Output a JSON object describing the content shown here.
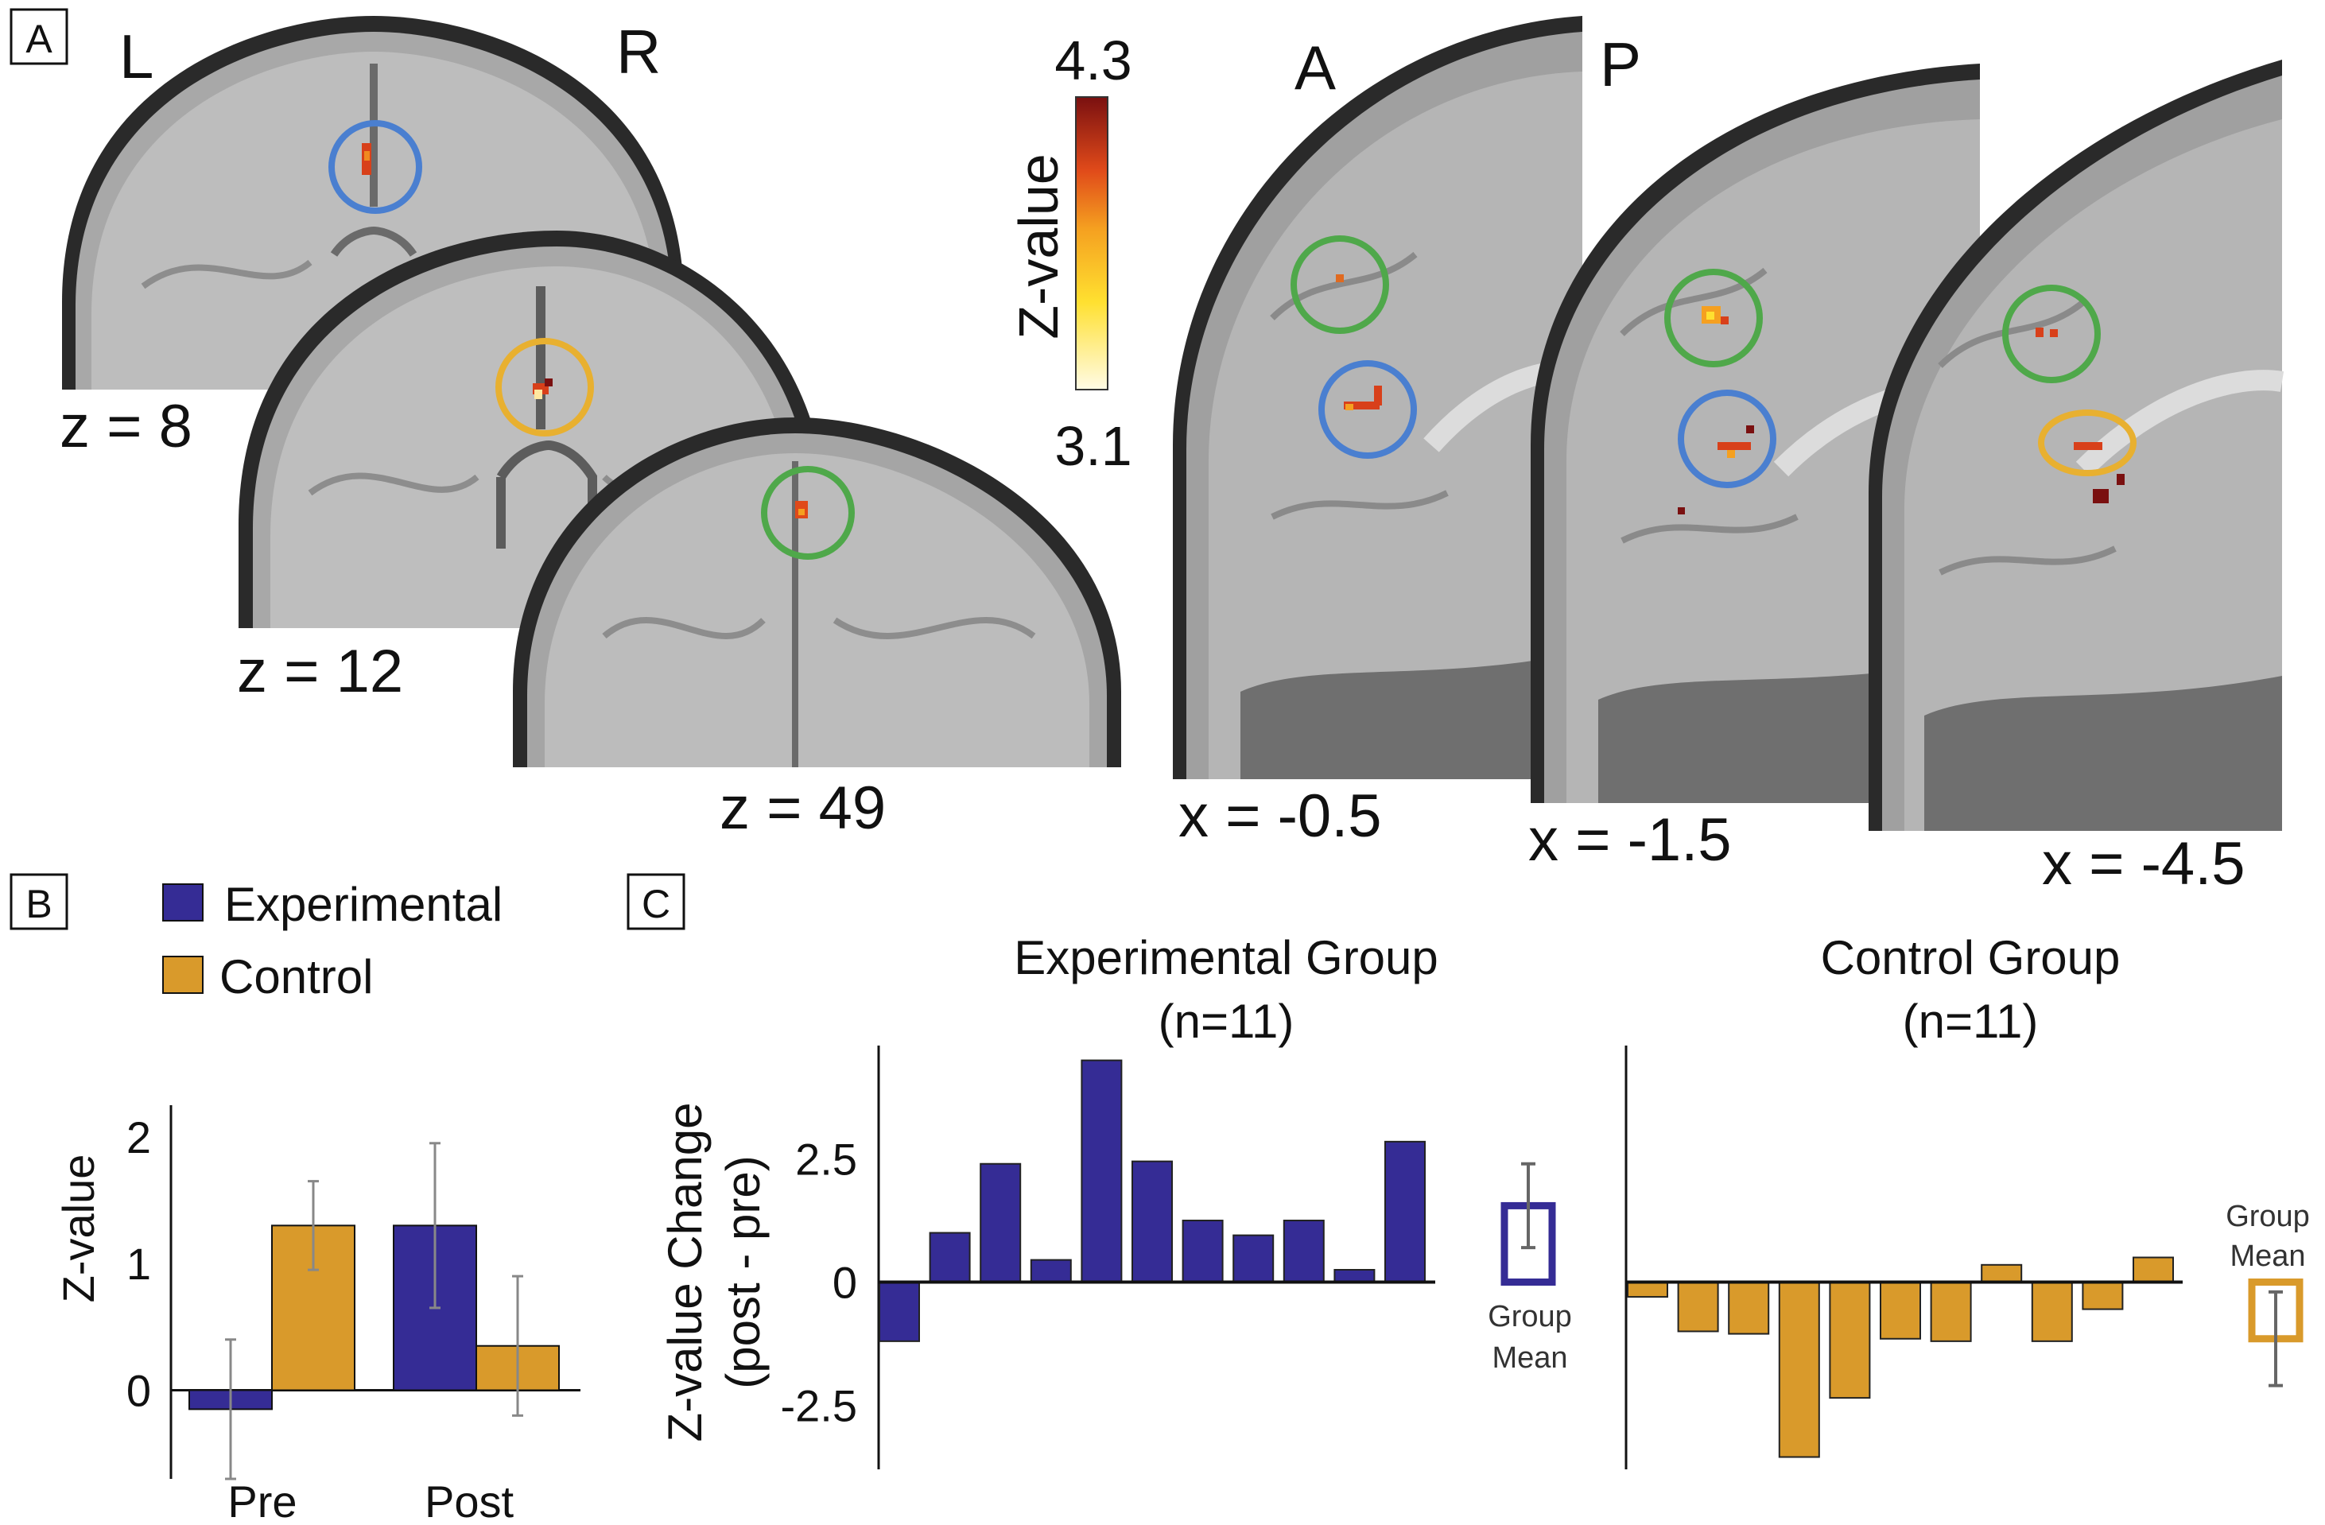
{
  "panels": {
    "A": "A",
    "B": "B",
    "C": "C"
  },
  "axial": {
    "left_label": "L",
    "right_label": "R",
    "slices": [
      "z = 8",
      "z = 12",
      "z = 49"
    ],
    "roi_colors": [
      "#4a7fd0",
      "#e8b030",
      "#4fa84a"
    ]
  },
  "sagittal": {
    "anterior_label": "A",
    "posterior_label": "P",
    "slices": [
      "x = -0.5",
      "x = -1.5",
      "x = -4.5"
    ]
  },
  "colorbar": {
    "label": "Z-value",
    "max_label": "4.3",
    "min_label": "3.1",
    "colors": [
      "#fffbe6",
      "#ffe030",
      "#f5a020",
      "#e04a1a",
      "#7a1010"
    ]
  },
  "colors": {
    "experimental": "#352c95",
    "control": "#d99a2b",
    "error_bar": "#888888"
  },
  "chart_data": [
    {
      "type": "bar",
      "panel": "B",
      "categories": [
        "Pre",
        "Post"
      ],
      "series": [
        {
          "name": "Experimental",
          "values": [
            -0.15,
            1.3
          ],
          "errors": [
            0.55,
            0.65
          ]
        },
        {
          "name": "Control",
          "values": [
            1.3,
            0.35
          ],
          "errors": [
            0.35,
            0.55
          ]
        }
      ],
      "ylabel": "Z-value",
      "yticks": [
        "0",
        "1",
        "2"
      ],
      "ylim": [
        -0.7,
        2.25
      ]
    },
    {
      "type": "bar",
      "panel": "C-left",
      "title": "Experimental Group",
      "subtitle": "(n=11)",
      "ylabel": "Z-value Change",
      "ylabel2": "(post - pre)",
      "yticks": [
        "2.5",
        "0",
        "-2.5"
      ],
      "ylim": [
        -3.8,
        4.8
      ],
      "values": [
        -1.2,
        1.0,
        2.4,
        0.45,
        4.5,
        2.45,
        1.25,
        0.95,
        1.25,
        0.25,
        2.85
      ],
      "group_mean": {
        "label_line1": "Group",
        "label_line2": "Mean",
        "value": 1.55,
        "error": 0.85
      }
    },
    {
      "type": "bar",
      "panel": "C-right",
      "title": "Control Group",
      "subtitle": "(n=11)",
      "ylim": [
        -3.8,
        4.8
      ],
      "values": [
        -0.3,
        -1.0,
        -1.05,
        -3.55,
        -2.35,
        -1.15,
        -1.2,
        0.35,
        -1.2,
        -0.55,
        0.5
      ],
      "group_mean": {
        "label_line1": "Group",
        "label_line2": "Mean",
        "value": -1.15,
        "error": 0.95
      }
    }
  ]
}
